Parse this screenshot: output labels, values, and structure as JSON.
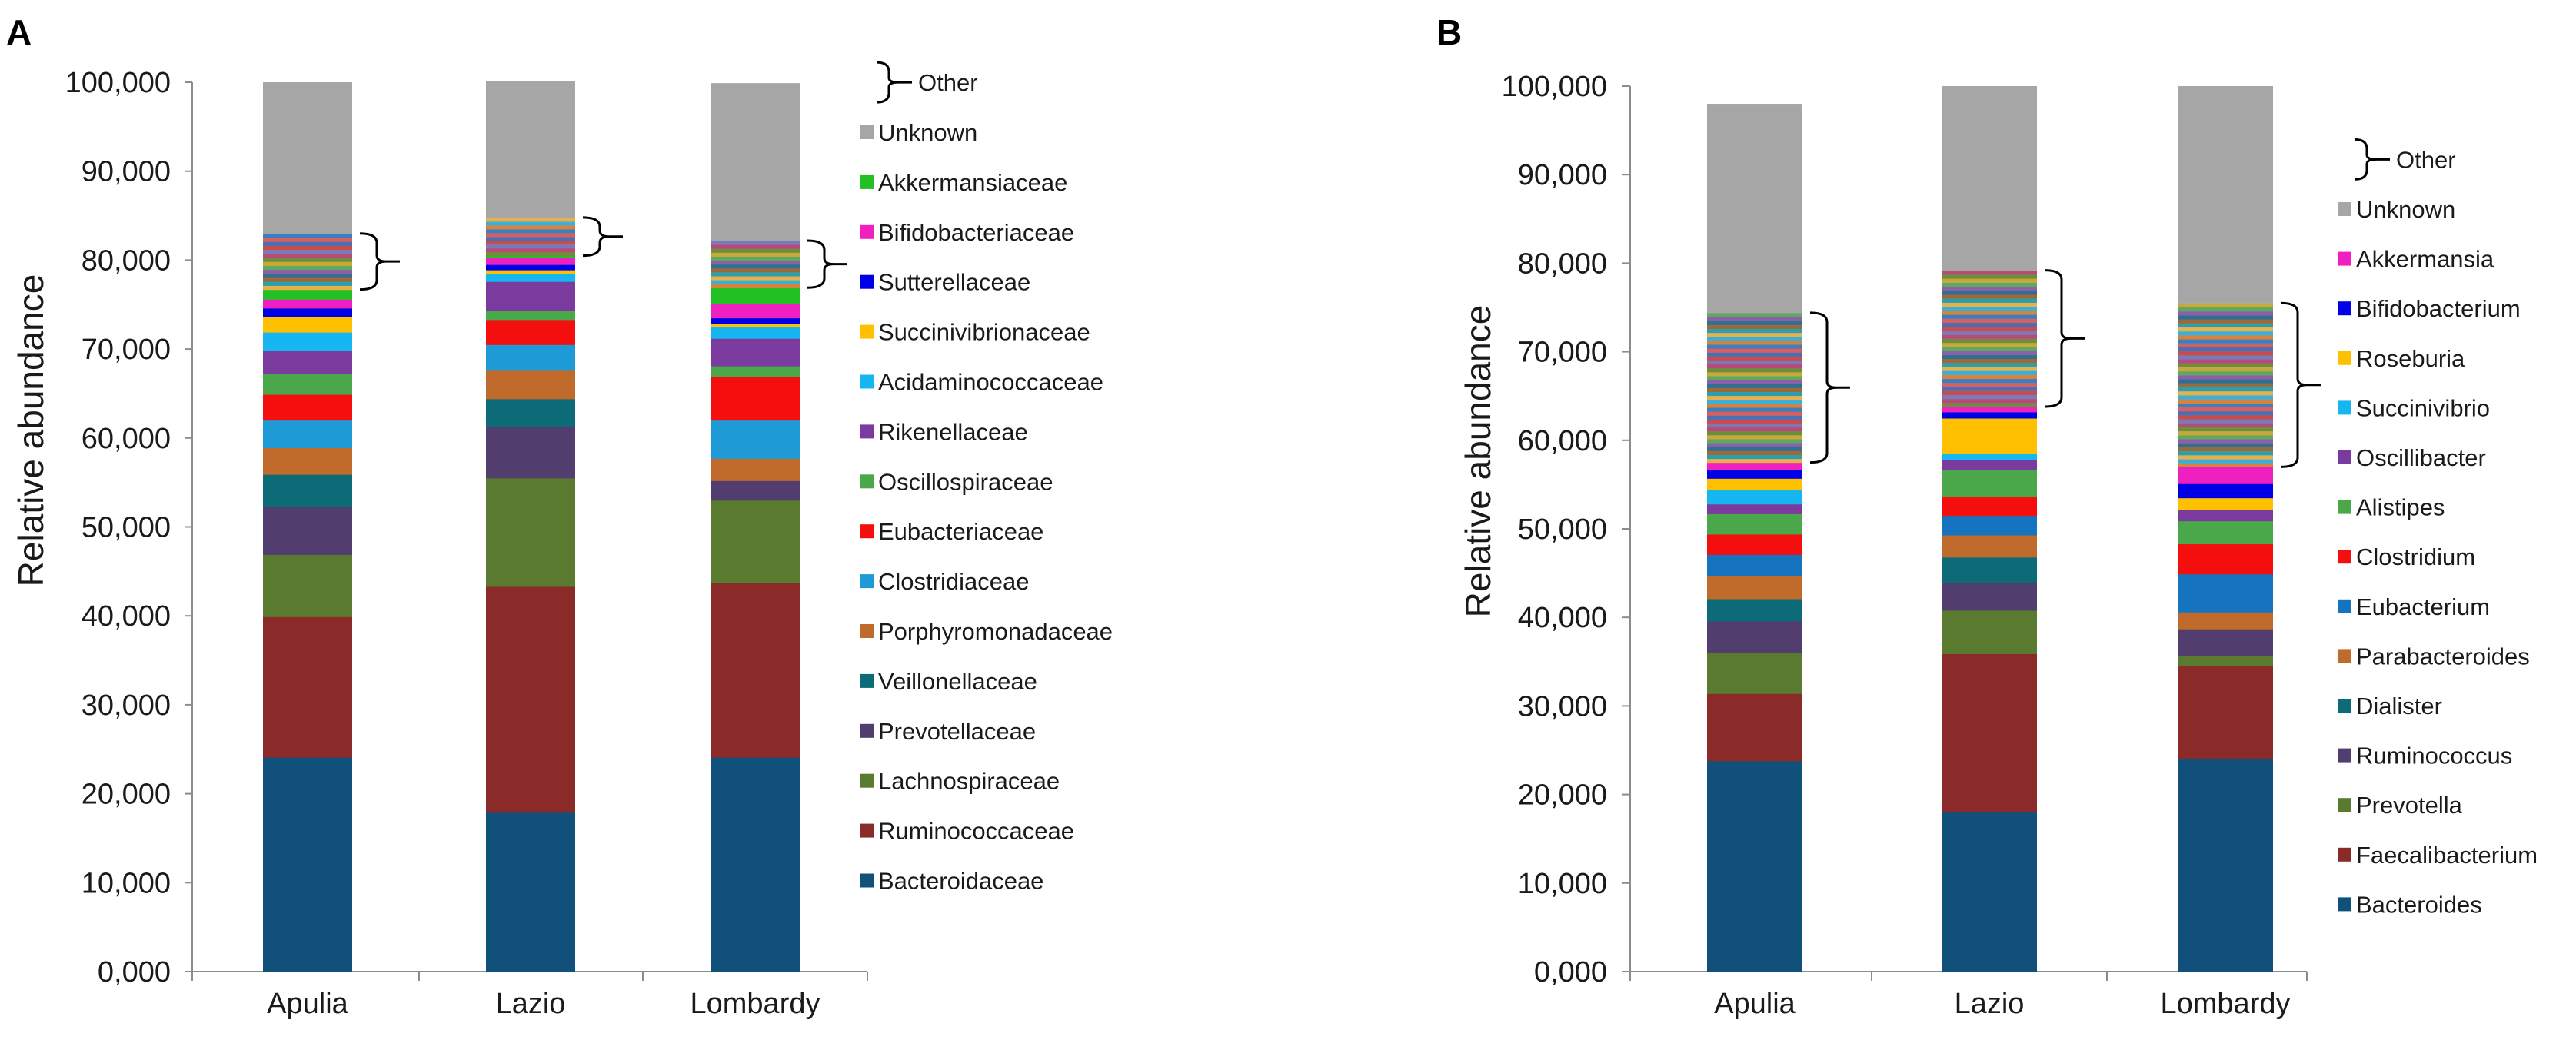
{
  "chart_data": [
    {
      "panel": "A",
      "type": "stacked-bar",
      "ylabel": "Relative abundance",
      "ylim": [
        0,
        100000
      ],
      "yticks": [
        "0,000",
        "10,000",
        "20,000",
        "30,000",
        "40,000",
        "50,000",
        "60,000",
        "70,000",
        "80,000",
        "90,000",
        "100,000"
      ],
      "categories": [
        "Apulia",
        "Lazio",
        "Lombardy"
      ],
      "series": [
        {
          "name": "Bacteroidaceae",
          "color": "#12507c",
          "values": [
            24100,
            17900,
            24100
          ]
        },
        {
          "name": "Ruminococcaceae",
          "color": "#8a2b2a",
          "values": [
            15800,
            25400,
            19600
          ]
        },
        {
          "name": "Lachnospiraceae",
          "color": "#5a7a30",
          "values": [
            7000,
            12200,
            9300
          ]
        },
        {
          "name": "Prevotellaceae",
          "color": "#523e6e",
          "values": [
            5400,
            5800,
            2200
          ]
        },
        {
          "name": "Veillonellaceae",
          "color": "#0d6b78",
          "values": [
            3600,
            3100,
            0
          ]
        },
        {
          "name": "Porphyromonadaceae",
          "color": "#c06a2b",
          "values": [
            3000,
            3200,
            2500
          ]
        },
        {
          "name": "Clostridiaceae",
          "color": "#1e9ad6",
          "values": [
            3100,
            2900,
            4300
          ]
        },
        {
          "name": "Eubacteriaceae",
          "color": "#f50e0e",
          "values": [
            2900,
            2800,
            4900
          ]
        },
        {
          "name": "Oscillospiraceae",
          "color": "#4aa84a",
          "values": [
            2300,
            1000,
            1200
          ]
        },
        {
          "name": "Rikenellaceae",
          "color": "#7a3a9e",
          "values": [
            2600,
            3300,
            3100
          ]
        },
        {
          "name": "Acidaminococcaceae",
          "color": "#16b7f0",
          "values": [
            2100,
            900,
            1300
          ]
        },
        {
          "name": "Succinivibrionaceae",
          "color": "#ffc000",
          "values": [
            1700,
            400,
            400
          ]
        },
        {
          "name": "Sutterellaceae",
          "color": "#0000e6",
          "values": [
            1000,
            600,
            600
          ]
        },
        {
          "name": "Bifidobacteriaceae",
          "color": "#f020c0",
          "values": [
            1000,
            800,
            1600
          ]
        },
        {
          "name": "Akkermansiaceae",
          "color": "#22c022",
          "values": [
            1100,
            200,
            1800
          ]
        },
        {
          "name": "Other",
          "color": "multicolor",
          "values": [
            6300,
            4300,
            5300
          ]
        },
        {
          "name": "Unknown",
          "color": "#a6a6a6",
          "values": [
            17000,
            15300,
            17700
          ]
        }
      ],
      "legend": [
        {
          "label": "Other",
          "marker": "brace"
        },
        {
          "label": "Unknown",
          "color": "#a6a6a6"
        },
        {
          "label": "Akkermansiaceae",
          "color": "#22c022"
        },
        {
          "label": "Bifidobacteriaceae",
          "color": "#f020c0"
        },
        {
          "label": "Sutterellaceae",
          "color": "#0000e6"
        },
        {
          "label": "Succinivibrionaceae",
          "color": "#ffc000"
        },
        {
          "label": "Acidaminococcaceae",
          "color": "#16b7f0"
        },
        {
          "label": "Rikenellaceae",
          "color": "#7a3a9e"
        },
        {
          "label": "Oscillospiraceae",
          "color": "#4aa84a"
        },
        {
          "label": "Eubacteriaceae",
          "color": "#f50e0e"
        },
        {
          "label": "Clostridiaceae",
          "color": "#1e9ad6"
        },
        {
          "label": "Porphyromonadaceae",
          "color": "#c06a2b"
        },
        {
          "label": "Veillonellaceae",
          "color": "#0d6b78"
        },
        {
          "label": "Prevotellaceae",
          "color": "#523e6e"
        },
        {
          "label": "Lachnospiraceae",
          "color": "#5a7a30"
        },
        {
          "label": "Ruminococcaceae",
          "color": "#8a2b2a"
        },
        {
          "label": "Bacteroidaceae",
          "color": "#12507c"
        }
      ]
    },
    {
      "panel": "B",
      "type": "stacked-bar",
      "ylabel": "Relative abundance",
      "ylim": [
        0,
        100000
      ],
      "yticks": [
        "0,000",
        "10,000",
        "20,000",
        "30,000",
        "40,000",
        "50,000",
        "60,000",
        "70,000",
        "80,000",
        "90,000",
        "100,000"
      ],
      "categories": [
        "Apulia",
        "Lazio",
        "Lombardy"
      ],
      "series": [
        {
          "name": "Bacteroides",
          "color": "#12507c",
          "values": [
            23800,
            18000,
            24000
          ]
        },
        {
          "name": "Faecalibacterium",
          "color": "#8a2b2a",
          "values": [
            7600,
            17900,
            10500
          ]
        },
        {
          "name": "Prevotella",
          "color": "#5a7a30",
          "values": [
            4600,
            4900,
            1200
          ]
        },
        {
          "name": "Ruminococcus",
          "color": "#523e6e",
          "values": [
            3600,
            3100,
            3000
          ]
        },
        {
          "name": "Dialister",
          "color": "#0d6b78",
          "values": [
            2500,
            2900,
            0
          ]
        },
        {
          "name": "Parabacteroides",
          "color": "#c06a2b",
          "values": [
            2600,
            2500,
            1900
          ]
        },
        {
          "name": "Eubacterium",
          "color": "#1673c0",
          "values": [
            2400,
            2200,
            4300
          ]
        },
        {
          "name": "Clostridium",
          "color": "#f50e0e",
          "values": [
            2300,
            2100,
            3400
          ]
        },
        {
          "name": "Alistipes",
          "color": "#4aa84a",
          "values": [
            2300,
            3100,
            2600
          ]
        },
        {
          "name": "Oscillibacter",
          "color": "#7a3a9e",
          "values": [
            1100,
            1100,
            1300
          ]
        },
        {
          "name": "Succinivibrio",
          "color": "#16b7f0",
          "values": [
            1600,
            700,
            0
          ]
        },
        {
          "name": "Roseburia",
          "color": "#ffc000",
          "values": [
            1300,
            4000,
            1300
          ]
        },
        {
          "name": "Bifidobacterium",
          "color": "#0000e6",
          "values": [
            1000,
            700,
            1600
          ]
        },
        {
          "name": "Akkermansia",
          "color": "#f020c0",
          "values": [
            800,
            600,
            1900
          ]
        },
        {
          "name": "Other",
          "color": "multicolor",
          "values": [
            16900,
            15400,
            18500
          ]
        },
        {
          "name": "Unknown",
          "color": "#a6a6a6",
          "values": [
            23600,
            20800,
            24500
          ]
        }
      ],
      "legend": [
        {
          "label": "Other",
          "marker": "brace"
        },
        {
          "label": "Unknown",
          "color": "#a6a6a6"
        },
        {
          "label": "Akkermansia",
          "color": "#f020c0"
        },
        {
          "label": "Bifidobacterium",
          "color": "#0000e6"
        },
        {
          "label": "Roseburia",
          "color": "#ffc000"
        },
        {
          "label": "Succinivibrio",
          "color": "#16b7f0"
        },
        {
          "label": "Oscillibacter",
          "color": "#7a3a9e"
        },
        {
          "label": "Alistipes",
          "color": "#4aa84a"
        },
        {
          "label": "Clostridium",
          "color": "#f50e0e"
        },
        {
          "label": "Eubacterium",
          "color": "#1673c0"
        },
        {
          "label": "Parabacteroides",
          "color": "#c06a2b"
        },
        {
          "label": "Dialister",
          "color": "#0d6b78"
        },
        {
          "label": "Ruminococcus",
          "color": "#523e6e"
        },
        {
          "label": "Prevotella",
          "color": "#5a7a30"
        },
        {
          "label": "Faecalibacterium",
          "color": "#8a2b2a"
        },
        {
          "label": "Bacteroides",
          "color": "#12507c"
        }
      ]
    }
  ],
  "other_palette": [
    "#e8b04a",
    "#3a7fc1",
    "#c94c4c",
    "#6b8f3a",
    "#8c5fa8",
    "#2a9fb0",
    "#d9823b",
    "#4a6fb5",
    "#b84a7a",
    "#5fa85f",
    "#9a6a3a",
    "#3ab0d9",
    "#d95f5f",
    "#7a7ab8",
    "#c9a83a",
    "#2f6f8f"
  ]
}
